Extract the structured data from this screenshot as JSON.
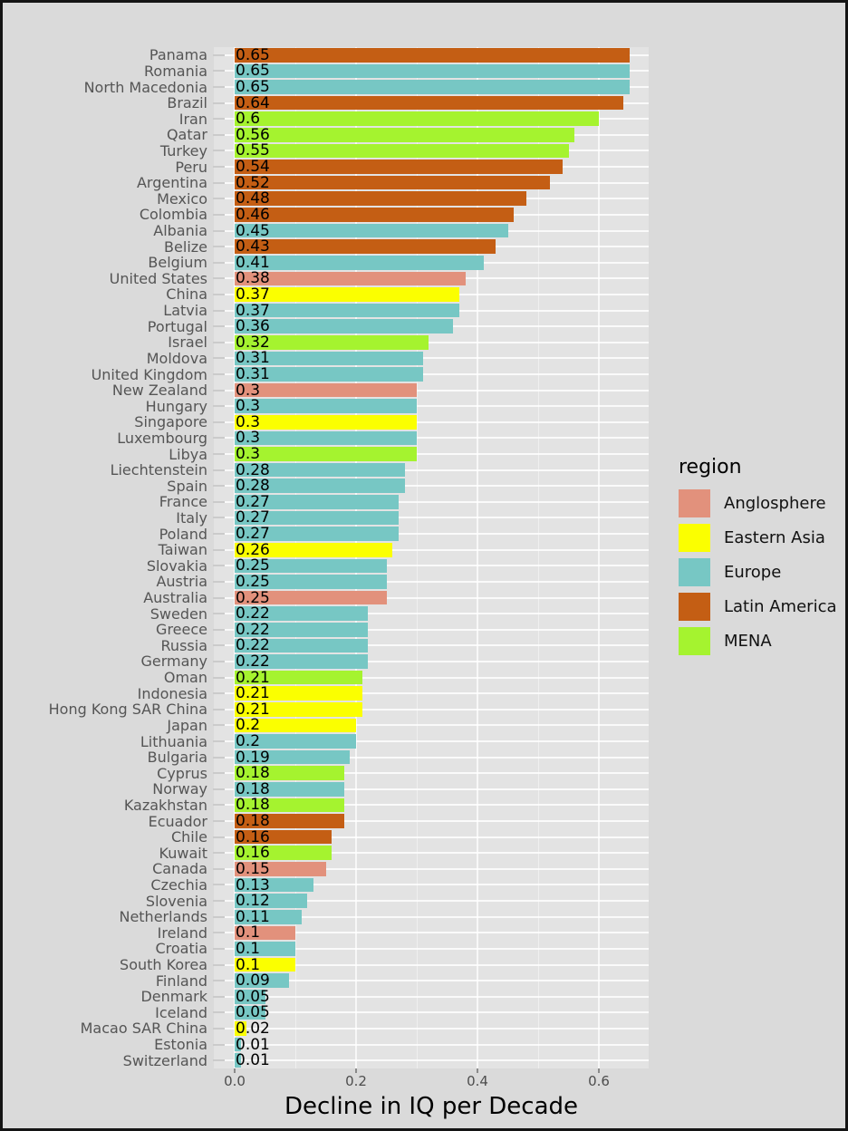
{
  "colors": {
    "outer_background": "#dadada",
    "panel_background": "#e3e3e3",
    "gridline": "#f7f7f7",
    "frame_border": "#141414",
    "axis_text": "#4d4d4d",
    "country_text": "#555555",
    "value_text": "#000000"
  },
  "chart_data": {
    "type": "bar",
    "orientation": "horizontal",
    "xlabel": "Decline in IQ per Decade",
    "ylabel": "",
    "title": "",
    "xlim": [
      0,
      0.68
    ],
    "x_ticks": [
      0.0,
      0.2,
      0.4,
      0.6
    ],
    "x_tick_labels": [
      "0.0",
      "0.2",
      "0.4",
      "0.6"
    ],
    "grid_major": [
      0.0,
      0.2,
      0.4,
      0.6
    ],
    "grid_minor": [
      0.1,
      0.3,
      0.5
    ],
    "grid": "on",
    "legend_title": "region",
    "legend_position": "right",
    "regions": [
      {
        "key": "anglosphere",
        "label": "Anglosphere",
        "color": "#e2917c"
      },
      {
        "key": "eastern_asia",
        "label": "Eastern Asia",
        "color": "#fbff00"
      },
      {
        "key": "europe",
        "label": "Europe",
        "color": "#77c7c4"
      },
      {
        "key": "latin_america",
        "label": "Latin America",
        "color": "#c45e14"
      },
      {
        "key": "mena",
        "label": "MENA",
        "color": "#a5f32f"
      }
    ],
    "bars": [
      {
        "country": "Panama",
        "value": 0.65,
        "label": "0.65",
        "region": "latin_america"
      },
      {
        "country": "Romania",
        "value": 0.65,
        "label": "0.65",
        "region": "europe"
      },
      {
        "country": "North Macedonia",
        "value": 0.65,
        "label": "0.65",
        "region": "europe"
      },
      {
        "country": "Brazil",
        "value": 0.64,
        "label": "0.64",
        "region": "latin_america"
      },
      {
        "country": "Iran",
        "value": 0.6,
        "label": "0.6",
        "region": "mena"
      },
      {
        "country": "Qatar",
        "value": 0.56,
        "label": "0.56",
        "region": "mena"
      },
      {
        "country": "Turkey",
        "value": 0.55,
        "label": "0.55",
        "region": "mena"
      },
      {
        "country": "Peru",
        "value": 0.54,
        "label": "0.54",
        "region": "latin_america"
      },
      {
        "country": "Argentina",
        "value": 0.52,
        "label": "0.52",
        "region": "latin_america"
      },
      {
        "country": "Mexico",
        "value": 0.48,
        "label": "0.48",
        "region": "latin_america"
      },
      {
        "country": "Colombia",
        "value": 0.46,
        "label": "0.46",
        "region": "latin_america"
      },
      {
        "country": "Albania",
        "value": 0.45,
        "label": "0.45",
        "region": "europe"
      },
      {
        "country": "Belize",
        "value": 0.43,
        "label": "0.43",
        "region": "latin_america"
      },
      {
        "country": "Belgium",
        "value": 0.41,
        "label": "0.41",
        "region": "europe"
      },
      {
        "country": "United States",
        "value": 0.38,
        "label": "0.38",
        "region": "anglosphere"
      },
      {
        "country": "China",
        "value": 0.37,
        "label": "0.37",
        "region": "eastern_asia"
      },
      {
        "country": "Latvia",
        "value": 0.37,
        "label": "0.37",
        "region": "europe"
      },
      {
        "country": "Portugal",
        "value": 0.36,
        "label": "0.36",
        "region": "europe"
      },
      {
        "country": "Israel",
        "value": 0.32,
        "label": "0.32",
        "region": "mena"
      },
      {
        "country": "Moldova",
        "value": 0.31,
        "label": "0.31",
        "region": "europe"
      },
      {
        "country": "United Kingdom",
        "value": 0.31,
        "label": "0.31",
        "region": "europe"
      },
      {
        "country": "New Zealand",
        "value": 0.3,
        "label": "0.3",
        "region": "anglosphere"
      },
      {
        "country": "Hungary",
        "value": 0.3,
        "label": "0.3",
        "region": "europe"
      },
      {
        "country": "Singapore",
        "value": 0.3,
        "label": "0.3",
        "region": "eastern_asia"
      },
      {
        "country": "Luxembourg",
        "value": 0.3,
        "label": "0.3",
        "region": "europe"
      },
      {
        "country": "Libya",
        "value": 0.3,
        "label": "0.3",
        "region": "mena"
      },
      {
        "country": "Liechtenstein",
        "value": 0.28,
        "label": "0.28",
        "region": "europe"
      },
      {
        "country": "Spain",
        "value": 0.28,
        "label": "0.28",
        "region": "europe"
      },
      {
        "country": "France",
        "value": 0.27,
        "label": "0.27",
        "region": "europe"
      },
      {
        "country": "Italy",
        "value": 0.27,
        "label": "0.27",
        "region": "europe"
      },
      {
        "country": "Poland",
        "value": 0.27,
        "label": "0.27",
        "region": "europe"
      },
      {
        "country": "Taiwan",
        "value": 0.26,
        "label": "0.26",
        "region": "eastern_asia"
      },
      {
        "country": "Slovakia",
        "value": 0.25,
        "label": "0.25",
        "region": "europe"
      },
      {
        "country": "Austria",
        "value": 0.25,
        "label": "0.25",
        "region": "europe"
      },
      {
        "country": "Australia",
        "value": 0.25,
        "label": "0.25",
        "region": "anglosphere"
      },
      {
        "country": "Sweden",
        "value": 0.22,
        "label": "0.22",
        "region": "europe"
      },
      {
        "country": "Greece",
        "value": 0.22,
        "label": "0.22",
        "region": "europe"
      },
      {
        "country": "Russia",
        "value": 0.22,
        "label": "0.22",
        "region": "europe"
      },
      {
        "country": "Germany",
        "value": 0.22,
        "label": "0.22",
        "region": "europe"
      },
      {
        "country": "Oman",
        "value": 0.21,
        "label": "0.21",
        "region": "mena"
      },
      {
        "country": "Indonesia",
        "value": 0.21,
        "label": "0.21",
        "region": "eastern_asia"
      },
      {
        "country": "Hong Kong SAR China",
        "value": 0.21,
        "label": "0.21",
        "region": "eastern_asia"
      },
      {
        "country": "Japan",
        "value": 0.2,
        "label": "0.2",
        "region": "eastern_asia"
      },
      {
        "country": "Lithuania",
        "value": 0.2,
        "label": "0.2",
        "region": "europe"
      },
      {
        "country": "Bulgaria",
        "value": 0.19,
        "label": "0.19",
        "region": "europe"
      },
      {
        "country": "Cyprus",
        "value": 0.18,
        "label": "0.18",
        "region": "mena"
      },
      {
        "country": "Norway",
        "value": 0.18,
        "label": "0.18",
        "region": "europe"
      },
      {
        "country": "Kazakhstan",
        "value": 0.18,
        "label": "0.18",
        "region": "mena"
      },
      {
        "country": "Ecuador",
        "value": 0.18,
        "label": "0.18",
        "region": "latin_america"
      },
      {
        "country": "Chile",
        "value": 0.16,
        "label": "0.16",
        "region": "latin_america"
      },
      {
        "country": "Kuwait",
        "value": 0.16,
        "label": "0.16",
        "region": "mena"
      },
      {
        "country": "Canada",
        "value": 0.15,
        "label": "0.15",
        "region": "anglosphere"
      },
      {
        "country": "Czechia",
        "value": 0.13,
        "label": "0.13",
        "region": "europe"
      },
      {
        "country": "Slovenia",
        "value": 0.12,
        "label": "0.12",
        "region": "europe"
      },
      {
        "country": "Netherlands",
        "value": 0.11,
        "label": "0.11",
        "region": "europe"
      },
      {
        "country": "Ireland",
        "value": 0.1,
        "label": "0.1",
        "region": "anglosphere"
      },
      {
        "country": "Croatia",
        "value": 0.1,
        "label": "0.1",
        "region": "europe"
      },
      {
        "country": "South Korea",
        "value": 0.1,
        "label": "0.1",
        "region": "eastern_asia"
      },
      {
        "country": "Finland",
        "value": 0.09,
        "label": "0.09",
        "region": "europe"
      },
      {
        "country": "Denmark",
        "value": 0.05,
        "label": "0.05",
        "region": "europe"
      },
      {
        "country": "Iceland",
        "value": 0.05,
        "label": "0.05",
        "region": "europe"
      },
      {
        "country": "Macao SAR China",
        "value": 0.02,
        "label": "0.02",
        "region": "eastern_asia"
      },
      {
        "country": "Estonia",
        "value": 0.01,
        "label": "0.01",
        "region": "europe"
      },
      {
        "country": "Switzerland",
        "value": 0.01,
        "label": "0.01",
        "region": "europe"
      }
    ]
  }
}
